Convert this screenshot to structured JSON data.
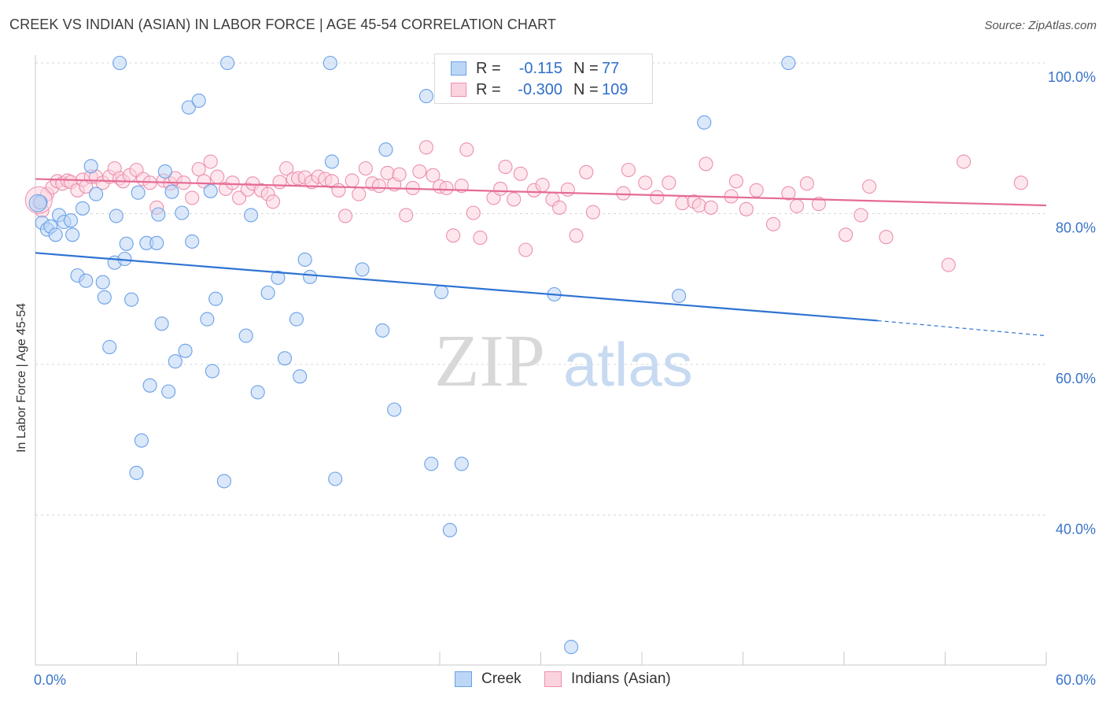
{
  "header": {
    "title": "CREEK VS INDIAN (ASIAN) IN LABOR FORCE | AGE 45-54 CORRELATION CHART",
    "source": "Source: ZipAtlas.com"
  },
  "watermark": {
    "zip": "ZIP",
    "atlas": "atlas"
  },
  "legend": {
    "rows": [
      {
        "r_label": "R =",
        "r_value": "-0.115",
        "n_label": "N =",
        "n_value": "77",
        "color": "#a9c9f2"
      },
      {
        "r_label": "R =",
        "r_value": "-0.300",
        "n_label": "N =",
        "n_value": "109",
        "color": "#f6b8cb"
      }
    ]
  },
  "bottom_legend": [
    {
      "label": "Creek",
      "color": "#a9c9f2"
    },
    {
      "label": "Indians (Asian)",
      "color": "#f6b8cb"
    }
  ],
  "chart_data": {
    "type": "scatter",
    "title": "CREEK VS INDIAN (ASIAN) IN LABOR FORCE | AGE 45-54 CORRELATION CHART",
    "xlabel": "",
    "ylabel": "In Labor Force | Age 45-54",
    "xlim": [
      0,
      60
    ],
    "ylim": [
      22,
      102
    ],
    "x_tick_labels": [
      "0.0%",
      "60.0%"
    ],
    "y_ticks": [
      40,
      60,
      80,
      100
    ],
    "y_tick_labels": [
      "40.0%",
      "60.0%",
      "80.0%",
      "100.0%"
    ],
    "grid": "horizontal-dashed",
    "legend_position": "top-center",
    "series": [
      {
        "name": "Creek",
        "color": "#6aa1e8",
        "fill": "#bcd6f6",
        "trend": {
          "x0": 0,
          "y0": 74.8,
          "x1": 50,
          "y1": 65.8,
          "x_end": 60,
          "y_end": 63.8
        },
        "points": [
          [
            0.3,
            81.5
          ],
          [
            0.4,
            78.8
          ],
          [
            0.7,
            77.9
          ],
          [
            0.9,
            78.3
          ],
          [
            1.2,
            77.2
          ],
          [
            1.4,
            79.8
          ],
          [
            1.7,
            78.9
          ],
          [
            2.1,
            79.1
          ],
          [
            2.2,
            77.2
          ],
          [
            2.5,
            71.8
          ],
          [
            2.8,
            80.7
          ],
          [
            3.0,
            71.1
          ],
          [
            3.3,
            86.3
          ],
          [
            3.6,
            82.6
          ],
          [
            4.0,
            70.9
          ],
          [
            4.1,
            68.9
          ],
          [
            4.4,
            62.3
          ],
          [
            4.7,
            73.5
          ],
          [
            4.8,
            79.7
          ],
          [
            5.0,
            100.0
          ],
          [
            5.3,
            74.0
          ],
          [
            5.4,
            76.0
          ],
          [
            5.7,
            68.6
          ],
          [
            6.0,
            45.6
          ],
          [
            6.1,
            82.8
          ],
          [
            6.3,
            49.9
          ],
          [
            6.6,
            76.1
          ],
          [
            6.8,
            57.2
          ],
          [
            7.2,
            76.1
          ],
          [
            7.3,
            79.9
          ],
          [
            7.5,
            65.4
          ],
          [
            7.7,
            85.6
          ],
          [
            7.9,
            56.4
          ],
          [
            8.1,
            82.9
          ],
          [
            8.3,
            60.4
          ],
          [
            8.7,
            80.1
          ],
          [
            8.9,
            61.8
          ],
          [
            9.1,
            94.1
          ],
          [
            9.3,
            76.3
          ],
          [
            9.7,
            95.0
          ],
          [
            10.2,
            66.0
          ],
          [
            10.4,
            83.0
          ],
          [
            10.5,
            59.1
          ],
          [
            10.7,
            68.7
          ],
          [
            11.2,
            44.5
          ],
          [
            11.4,
            100.0
          ],
          [
            12.5,
            63.8
          ],
          [
            12.8,
            79.8
          ],
          [
            13.2,
            56.3
          ],
          [
            13.8,
            69.5
          ],
          [
            14.4,
            71.5
          ],
          [
            14.8,
            60.8
          ],
          [
            15.5,
            66.0
          ],
          [
            15.7,
            58.4
          ],
          [
            16.0,
            73.9
          ],
          [
            16.3,
            71.6
          ],
          [
            17.5,
            100.0
          ],
          [
            17.6,
            86.9
          ],
          [
            17.8,
            44.8
          ],
          [
            19.4,
            72.6
          ],
          [
            20.6,
            64.5
          ],
          [
            20.8,
            88.5
          ],
          [
            21.3,
            54.0
          ],
          [
            23.2,
            95.6
          ],
          [
            23.5,
            46.8
          ],
          [
            24.1,
            69.6
          ],
          [
            24.6,
            38.0
          ],
          [
            25.3,
            46.8
          ],
          [
            27.1,
            100.0
          ],
          [
            30.8,
            69.3
          ],
          [
            31.8,
            22.5
          ],
          [
            38.2,
            69.1
          ],
          [
            39.7,
            92.1
          ],
          [
            44.7,
            100.0
          ]
        ]
      },
      {
        "name": "Indians (Asian)",
        "color": "#ec8fae",
        "fill": "#fbd3df",
        "trend": {
          "x0": 0,
          "y0": 84.6,
          "x1": 60,
          "y1": 81.1
        },
        "points": [
          [
            0.2,
            81.5
          ],
          [
            0.4,
            80.4
          ],
          [
            0.7,
            82.6
          ],
          [
            1.0,
            83.5
          ],
          [
            1.3,
            84.3
          ],
          [
            1.6,
            84.0
          ],
          [
            1.9,
            84.4
          ],
          [
            2.1,
            84.2
          ],
          [
            2.5,
            83.1
          ],
          [
            2.8,
            84.5
          ],
          [
            3.0,
            83.6
          ],
          [
            3.3,
            84.9
          ],
          [
            3.6,
            84.9
          ],
          [
            4.0,
            84.1
          ],
          [
            4.4,
            84.9
          ],
          [
            4.7,
            86.0
          ],
          [
            5.0,
            84.7
          ],
          [
            5.2,
            84.3
          ],
          [
            5.6,
            85.1
          ],
          [
            6.0,
            85.8
          ],
          [
            6.4,
            84.6
          ],
          [
            6.8,
            84.1
          ],
          [
            7.2,
            80.8
          ],
          [
            7.6,
            84.4
          ],
          [
            8.0,
            84.0
          ],
          [
            8.3,
            84.7
          ],
          [
            8.8,
            84.1
          ],
          [
            9.3,
            82.1
          ],
          [
            9.7,
            85.9
          ],
          [
            10.0,
            84.3
          ],
          [
            10.4,
            86.9
          ],
          [
            10.8,
            84.9
          ],
          [
            11.3,
            83.3
          ],
          [
            11.7,
            84.1
          ],
          [
            12.1,
            82.1
          ],
          [
            12.6,
            83.2
          ],
          [
            12.9,
            84.0
          ],
          [
            13.4,
            83.1
          ],
          [
            13.8,
            82.6
          ],
          [
            14.1,
            81.6
          ],
          [
            14.5,
            84.2
          ],
          [
            14.9,
            86.0
          ],
          [
            15.3,
            84.6
          ],
          [
            15.6,
            84.7
          ],
          [
            16.0,
            84.8
          ],
          [
            16.4,
            84.2
          ],
          [
            16.8,
            84.9
          ],
          [
            17.2,
            84.6
          ],
          [
            17.6,
            84.3
          ],
          [
            18.0,
            83.1
          ],
          [
            18.4,
            79.7
          ],
          [
            18.8,
            84.4
          ],
          [
            19.2,
            82.6
          ],
          [
            19.6,
            86.0
          ],
          [
            20.0,
            84.0
          ],
          [
            20.4,
            83.7
          ],
          [
            20.9,
            85.4
          ],
          [
            21.3,
            83.9
          ],
          [
            21.6,
            85.2
          ],
          [
            22.0,
            79.8
          ],
          [
            22.4,
            83.4
          ],
          [
            22.8,
            85.6
          ],
          [
            23.2,
            88.8
          ],
          [
            23.6,
            85.1
          ],
          [
            24.0,
            83.6
          ],
          [
            24.4,
            83.4
          ],
          [
            24.8,
            77.1
          ],
          [
            25.3,
            83.7
          ],
          [
            25.6,
            88.5
          ],
          [
            26.0,
            80.1
          ],
          [
            26.4,
            76.8
          ],
          [
            27.2,
            82.1
          ],
          [
            27.6,
            83.3
          ],
          [
            27.9,
            86.2
          ],
          [
            28.4,
            81.9
          ],
          [
            28.8,
            85.3
          ],
          [
            29.1,
            75.2
          ],
          [
            29.6,
            83.1
          ],
          [
            30.1,
            83.8
          ],
          [
            30.7,
            81.9
          ],
          [
            31.1,
            80.8
          ],
          [
            31.6,
            83.2
          ],
          [
            32.1,
            77.1
          ],
          [
            32.7,
            85.5
          ],
          [
            33.1,
            80.2
          ],
          [
            34.9,
            82.7
          ],
          [
            35.2,
            85.8
          ],
          [
            36.2,
            84.1
          ],
          [
            36.9,
            82.2
          ],
          [
            37.6,
            84.1
          ],
          [
            38.4,
            81.4
          ],
          [
            39.1,
            81.6
          ],
          [
            39.4,
            81.1
          ],
          [
            39.8,
            86.6
          ],
          [
            40.1,
            80.8
          ],
          [
            41.3,
            82.3
          ],
          [
            41.6,
            84.3
          ],
          [
            42.2,
            80.6
          ],
          [
            42.8,
            83.1
          ],
          [
            43.8,
            78.6
          ],
          [
            44.7,
            82.7
          ],
          [
            45.2,
            81.0
          ],
          [
            45.8,
            84.0
          ],
          [
            46.5,
            81.3
          ],
          [
            48.1,
            77.2
          ],
          [
            49.0,
            79.8
          ],
          [
            49.5,
            83.6
          ],
          [
            50.5,
            76.9
          ],
          [
            54.2,
            73.2
          ],
          [
            55.1,
            86.9
          ],
          [
            58.5,
            84.1
          ]
        ]
      }
    ]
  }
}
